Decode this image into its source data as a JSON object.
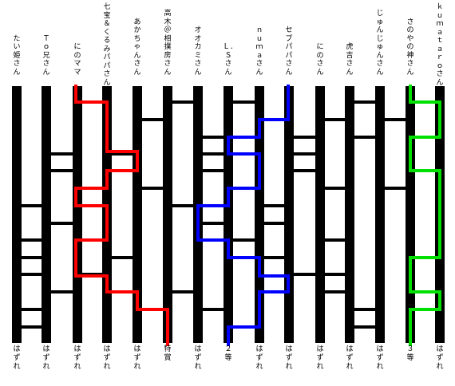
{
  "participants": [
    "たい姫さん",
    "Ｔｏ兄さん",
    "にのママ",
    "七宝＆くるみパパさん",
    "あかちゃんさん",
    "高木＠相撲房さん",
    "オオカミさん",
    "Ｌ．Ｓさん",
    "ｎｕｍａさん",
    "セブパパさん",
    "にのさん",
    "虎吉さん",
    "じゅんじゅんさん",
    "さのやの神さん",
    "ｋｕｍａｔａｒｏさん"
  ],
  "results": [
    "はずれ",
    "はずれ",
    "はずれ",
    "はずれ",
    "はずれ",
    "特賞",
    "はずれ",
    "２等",
    "はずれ",
    "はずれ",
    "はずれ",
    "はずれ",
    "はずれ",
    "３等",
    "はずれ"
  ],
  "colors": {
    "line": "#000000",
    "path_red": "#ff0000",
    "path_blue": "#0000ff",
    "path_green": "#00e000"
  }
}
